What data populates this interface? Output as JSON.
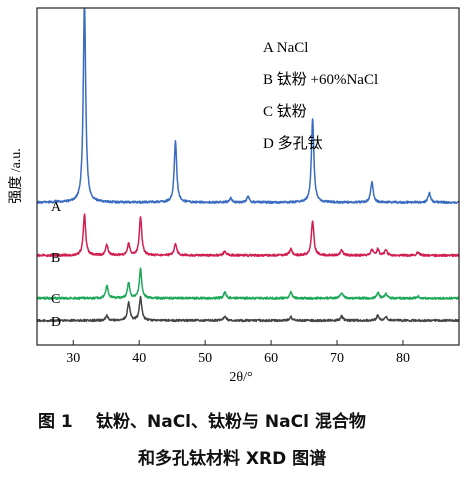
{
  "chart_data": {
    "type": "line",
    "xlabel": "2θ/°",
    "ylabel": "强度 /a.u.",
    "xlim": [
      24.5,
      88.5
    ],
    "x_ticks": [
      30,
      40,
      50,
      60,
      70,
      80
    ],
    "y_ticks_shown": false,
    "grid": false,
    "legend_position": "top-right",
    "legend": [
      "A NaCl",
      "B 钛粉 +60%NaCl",
      "C 钛粉",
      "D 多孔钛"
    ],
    "series": [
      {
        "label": "A",
        "color": "#3a6cc0",
        "baseline": 0.72,
        "peaks": [
          [
            27.4,
            0.05
          ],
          [
            31.7,
            11.5
          ],
          [
            45.5,
            3.5
          ],
          [
            53.9,
            0.25
          ],
          [
            56.5,
            0.35
          ],
          [
            66.3,
            4.8
          ],
          [
            75.3,
            1.2
          ],
          [
            84.0,
            0.55
          ]
        ]
      },
      {
        "label": "B",
        "color": "#d01f50",
        "baseline": 0.55,
        "peaks": [
          [
            31.7,
            2.35
          ],
          [
            35.1,
            0.6
          ],
          [
            38.4,
            0.65
          ],
          [
            40.2,
            2.2
          ],
          [
            45.5,
            0.7
          ],
          [
            53.0,
            0.25
          ],
          [
            63.0,
            0.4
          ],
          [
            66.3,
            2.0
          ],
          [
            70.7,
            0.3
          ],
          [
            75.3,
            0.3
          ],
          [
            76.2,
            0.35
          ],
          [
            77.4,
            0.3
          ],
          [
            82.3,
            0.2
          ]
        ]
      },
      {
        "label": "C",
        "color": "#1fa85a",
        "baseline": 0.5,
        "peaks": [
          [
            35.1,
            0.75
          ],
          [
            38.4,
            0.85
          ],
          [
            40.2,
            1.65
          ],
          [
            53.0,
            0.35
          ],
          [
            63.0,
            0.35
          ],
          [
            70.7,
            0.35
          ],
          [
            76.2,
            0.3
          ],
          [
            77.4,
            0.25
          ],
          [
            82.3,
            0.12
          ]
        ]
      },
      {
        "label": "D",
        "color": "#444444",
        "baseline": 0.6,
        "peaks": [
          [
            35.1,
            0.3
          ],
          [
            38.4,
            1.05
          ],
          [
            40.2,
            1.3
          ],
          [
            53.0,
            0.25
          ],
          [
            63.0,
            0.2
          ],
          [
            70.7,
            0.25
          ],
          [
            76.2,
            0.3
          ],
          [
            77.4,
            0.2
          ]
        ]
      }
    ]
  },
  "caption": {
    "label": "图 1",
    "line1": "钛粉、NaCl、钛粉与 NaCl 混合物",
    "line2": "和多孔钛材料 XRD 图谱"
  }
}
